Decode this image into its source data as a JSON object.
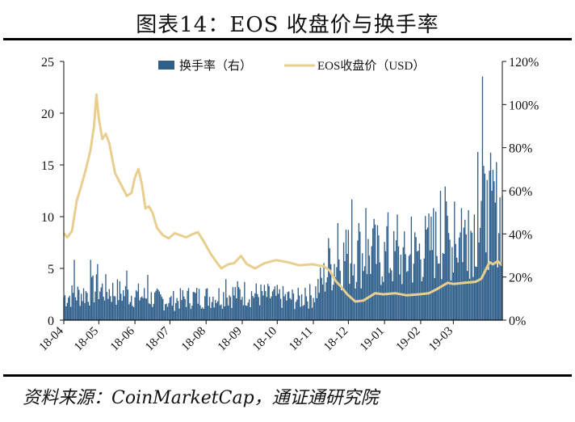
{
  "title": "图表14：EOS 收盘价与换手率",
  "source": "资料来源：CoinMarketCap，通证通研究院",
  "chart_data": {
    "type": "bar+line",
    "categories_x": [
      "18-04",
      "18-05",
      "18-06",
      "18-07",
      "18-08",
      "18-09",
      "18-10",
      "18-11",
      "18-12",
      "19-01",
      "19-02",
      "19-03"
    ],
    "left_axis": {
      "min": 0,
      "max": 25,
      "ticks": [
        "0",
        "5",
        "10",
        "15",
        "20",
        "25"
      ]
    },
    "right_axis": {
      "min": 0,
      "max": 120,
      "ticks": [
        "0%",
        "20%",
        "40%",
        "60%",
        "80%",
        "100%",
        "120%"
      ]
    },
    "legend_position": "top",
    "series": [
      {
        "name": "换手率（右）",
        "type": "bar",
        "axis": "right",
        "color": "#2f5f8a",
        "unit": "%",
        "anchors": [
          [
            "18-04-01",
            11
          ],
          [
            "18-04-20",
            13
          ],
          [
            "18-05-01",
            15
          ],
          [
            "18-05-20",
            13
          ],
          [
            "18-06-01",
            12
          ],
          [
            "18-06-20",
            10
          ],
          [
            "18-07-01",
            9
          ],
          [
            "18-07-20",
            11
          ],
          [
            "18-08-01",
            11
          ],
          [
            "18-08-20",
            12
          ],
          [
            "18-09-01",
            13
          ],
          [
            "18-09-15",
            12
          ],
          [
            "18-10-01",
            11
          ],
          [
            "18-10-20",
            10
          ],
          [
            "18-11-01",
            12
          ],
          [
            "18-11-10",
            20
          ],
          [
            "18-11-20",
            28
          ],
          [
            "18-12-01",
            30
          ],
          [
            "18-12-20",
            31
          ],
          [
            "19-01-01",
            30
          ],
          [
            "19-01-20",
            28
          ],
          [
            "19-02-01",
            33
          ],
          [
            "19-02-20",
            38
          ],
          [
            "19-03-01",
            36
          ],
          [
            "19-03-20",
            45
          ],
          [
            "19-04-01",
            52
          ]
        ],
        "spikes": [
          [
            "18-04-10",
            28
          ],
          [
            "18-04-24",
            28
          ],
          [
            "18-04-30",
            26
          ],
          [
            "18-05-25",
            23
          ],
          [
            "18-06-12",
            21
          ],
          [
            "18-08-18",
            19
          ],
          [
            "18-10-25",
            15
          ],
          [
            "18-11-14",
            38
          ],
          [
            "18-11-22",
            45
          ],
          [
            "18-11-29",
            42
          ],
          [
            "18-12-04",
            56
          ],
          [
            "18-12-10",
            45
          ],
          [
            "18-12-16",
            52
          ],
          [
            "18-12-23",
            47
          ],
          [
            "19-01-04",
            50
          ],
          [
            "19-01-12",
            49
          ],
          [
            "19-01-24",
            48
          ],
          [
            "19-02-06",
            42
          ],
          [
            "19-02-12",
            52
          ],
          [
            "19-02-18",
            60
          ],
          [
            "19-02-22",
            62
          ],
          [
            "19-03-02",
            55
          ],
          [
            "19-03-08",
            52
          ],
          [
            "19-03-14",
            51
          ],
          [
            "19-03-22",
            78
          ],
          [
            "19-03-26",
            113
          ],
          [
            "19-03-30",
            65
          ],
          [
            "19-04-03",
            60
          ]
        ]
      },
      {
        "name": "EOS收盘价（USD）",
        "type": "line",
        "axis": "left",
        "color": "#e8cf8f",
        "points": [
          [
            "18-04-01",
            8.4
          ],
          [
            "18-04-04",
            8.0
          ],
          [
            "18-04-08",
            8.6
          ],
          [
            "18-04-12",
            11.5
          ],
          [
            "18-04-16",
            13.0
          ],
          [
            "18-04-20",
            14.6
          ],
          [
            "18-04-24",
            16.5
          ],
          [
            "18-04-27",
            18.8
          ],
          [
            "18-04-29",
            21.8
          ],
          [
            "18-05-01",
            19.5
          ],
          [
            "18-05-04",
            17.5
          ],
          [
            "18-05-07",
            18.0
          ],
          [
            "18-05-10",
            17.1
          ],
          [
            "18-05-15",
            14.2
          ],
          [
            "18-05-20",
            13.1
          ],
          [
            "18-05-25",
            12.0
          ],
          [
            "18-05-29",
            12.3
          ],
          [
            "18-06-01",
            13.8
          ],
          [
            "18-06-04",
            14.6
          ],
          [
            "18-06-07",
            13.1
          ],
          [
            "18-06-10",
            10.8
          ],
          [
            "18-06-13",
            11.0
          ],
          [
            "18-06-16",
            10.4
          ],
          [
            "18-06-20",
            8.9
          ],
          [
            "18-06-25",
            8.2
          ],
          [
            "18-06-30",
            7.9
          ],
          [
            "18-07-05",
            8.4
          ],
          [
            "18-07-10",
            8.2
          ],
          [
            "18-07-15",
            8.0
          ],
          [
            "18-07-20",
            8.3
          ],
          [
            "18-07-25",
            8.5
          ],
          [
            "18-07-30",
            7.6
          ],
          [
            "18-08-05",
            6.4
          ],
          [
            "18-08-10",
            5.6
          ],
          [
            "18-08-14",
            5.0
          ],
          [
            "18-08-20",
            5.4
          ],
          [
            "18-08-25",
            5.5
          ],
          [
            "18-08-31",
            6.2
          ],
          [
            "18-09-05",
            5.4
          ],
          [
            "18-09-12",
            5.0
          ],
          [
            "18-09-20",
            5.5
          ],
          [
            "18-09-30",
            5.8
          ],
          [
            "18-10-10",
            5.6
          ],
          [
            "18-10-20",
            5.3
          ],
          [
            "18-10-31",
            5.4
          ],
          [
            "18-11-10",
            5.2
          ],
          [
            "18-11-15",
            4.8
          ],
          [
            "18-11-20",
            3.8
          ],
          [
            "18-11-25",
            3.2
          ],
          [
            "18-11-30",
            2.5
          ],
          [
            "18-12-07",
            1.8
          ],
          [
            "18-12-14",
            1.9
          ],
          [
            "18-12-24",
            2.6
          ],
          [
            "18-12-31",
            2.5
          ],
          [
            "19-01-10",
            2.6
          ],
          [
            "19-01-20",
            2.4
          ],
          [
            "19-01-31",
            2.5
          ],
          [
            "19-02-08",
            2.6
          ],
          [
            "19-02-15",
            3.0
          ],
          [
            "19-02-24",
            3.6
          ],
          [
            "19-03-01",
            3.5
          ],
          [
            "19-03-10",
            3.6
          ],
          [
            "19-03-20",
            3.7
          ],
          [
            "19-03-25",
            4.0
          ],
          [
            "19-04-01",
            5.6
          ],
          [
            "19-04-04",
            5.4
          ],
          [
            "19-04-08",
            5.7
          ],
          [
            "19-04-12",
            5.3
          ]
        ]
      }
    ]
  }
}
